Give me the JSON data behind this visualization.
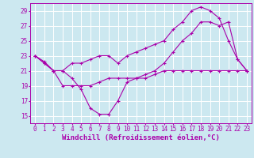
{
  "xlabel": "Windchill (Refroidissement éolien,°C)",
  "bg_color": "#cce8f0",
  "line_color": "#aa00aa",
  "grid_color": "#ffffff",
  "xlim": [
    -0.5,
    23.5
  ],
  "ylim": [
    14,
    30
  ],
  "yticks": [
    15,
    17,
    19,
    21,
    23,
    25,
    27,
    29
  ],
  "xticks": [
    0,
    1,
    2,
    3,
    4,
    5,
    6,
    7,
    8,
    9,
    10,
    11,
    12,
    13,
    14,
    15,
    16,
    17,
    18,
    19,
    20,
    21,
    22,
    23
  ],
  "line1_x": [
    0,
    1,
    2,
    3,
    4,
    5,
    6,
    7,
    8,
    9,
    10,
    11,
    12,
    13,
    14,
    15,
    16,
    17,
    18,
    19,
    20,
    21,
    22,
    23
  ],
  "line1_y": [
    23,
    22,
    21,
    21,
    20,
    18.5,
    16,
    15.2,
    15.2,
    17,
    19.5,
    20,
    20.5,
    21,
    22,
    23.5,
    25,
    26,
    27.5,
    27.5,
    27,
    27.5,
    22.5,
    21
  ],
  "line2_x": [
    0,
    1,
    2,
    3,
    4,
    5,
    6,
    7,
    8,
    9,
    10,
    11,
    12,
    13,
    14,
    15,
    16,
    17,
    18,
    19,
    20,
    21,
    22,
    23
  ],
  "line2_y": [
    23,
    22.2,
    21,
    21,
    22,
    22,
    22.5,
    23,
    23,
    22,
    23,
    23.5,
    24,
    24.5,
    25,
    26.5,
    27.5,
    29,
    29.5,
    29,
    28,
    25,
    22.5,
    21
  ],
  "line3_x": [
    0,
    1,
    2,
    3,
    4,
    5,
    6,
    7,
    8,
    9,
    10,
    11,
    12,
    13,
    14,
    15,
    16,
    17,
    18,
    19,
    20,
    21,
    22,
    23
  ],
  "line3_y": [
    23,
    22,
    21,
    19,
    19,
    19,
    19,
    19.5,
    20,
    20,
    20,
    20,
    20,
    20.5,
    21,
    21,
    21,
    21,
    21,
    21,
    21,
    21,
    21,
    21
  ],
  "tick_fontsize": 5.5,
  "xlabel_fontsize": 6.5
}
